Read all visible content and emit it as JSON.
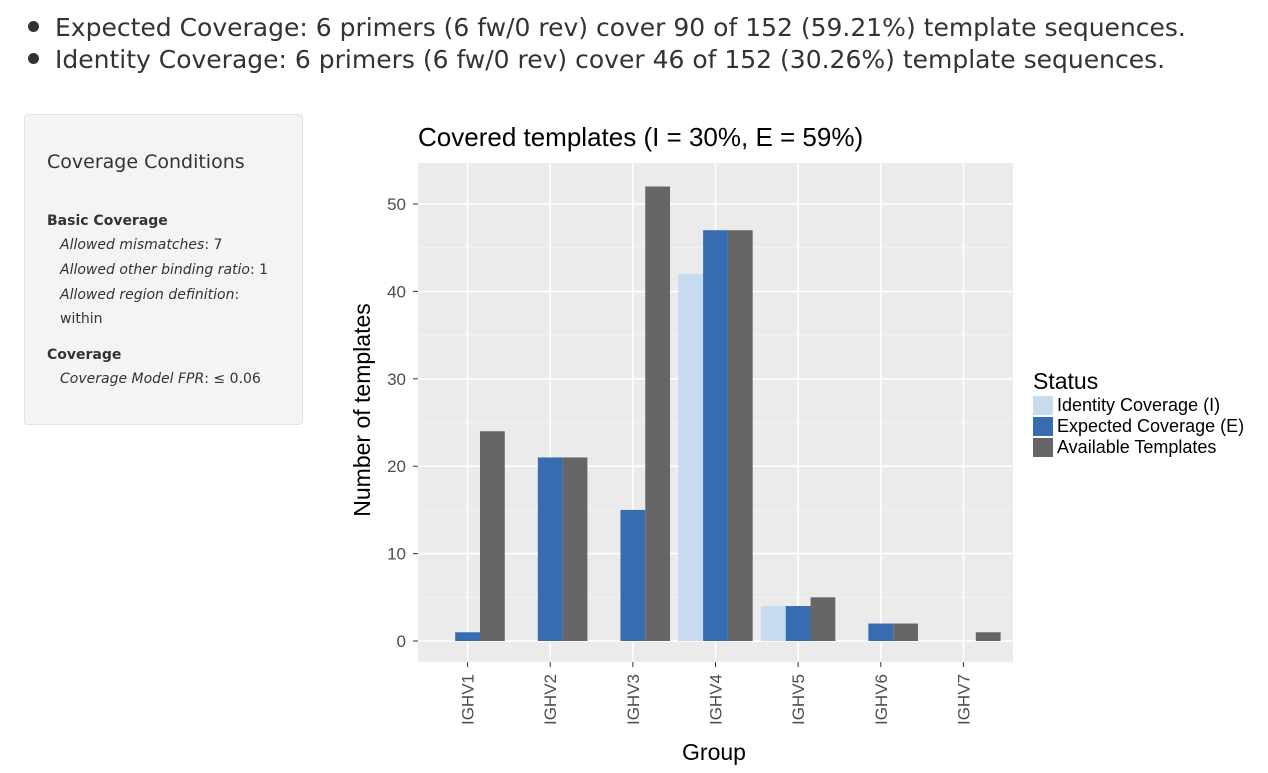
{
  "summary": {
    "items": [
      "Expected Coverage: 6 primers (6 fw/0 rev) cover 90 of 152 (59.21%) template sequences.",
      "Identity Coverage: 6 primers (6 fw/0 rev) cover 46 of 152 (30.26%) template sequences."
    ]
  },
  "conditions": {
    "title": "Coverage Conditions",
    "basic_title": "Basic Coverage",
    "mismatch_label": "Allowed mismatches",
    "mismatch_value": ": 7",
    "binding_label": "Allowed other binding ratio",
    "binding_value": ": 1",
    "region_label": "Allowed region definition",
    "region_colon": ":",
    "region_value": "within",
    "coverage_title": "Coverage",
    "fpr_label": "Coverage Model FPR",
    "fpr_value": ": ≤ 0.06"
  },
  "chart_data": {
    "type": "bar",
    "title": "Covered templates (I = 30%, E = 59%)",
    "xlabel": "Group",
    "ylabel": "Number of templates",
    "categories": [
      "IGHV1",
      "IGHV2",
      "IGHV3",
      "IGHV4",
      "IGHV5",
      "IGHV6",
      "IGHV7"
    ],
    "series": [
      {
        "name": "Identity Coverage (I)",
        "color": "#c6dbef",
        "values": [
          0,
          0,
          0,
          42,
          4,
          0,
          0
        ]
      },
      {
        "name": "Expected Coverage (E)",
        "color": "#386cb0",
        "values": [
          1,
          21,
          15,
          47,
          4,
          2,
          0
        ]
      },
      {
        "name": "Available Templates",
        "color": "#666666",
        "values": [
          24,
          21,
          52,
          47,
          5,
          2,
          1
        ]
      }
    ],
    "ylim": [
      0,
      55
    ],
    "yticks": [
      0,
      10,
      20,
      30,
      40,
      50
    ],
    "grid": true,
    "legend_title": "Status",
    "legend_position": "right",
    "panel_background": "#ebebeb"
  }
}
